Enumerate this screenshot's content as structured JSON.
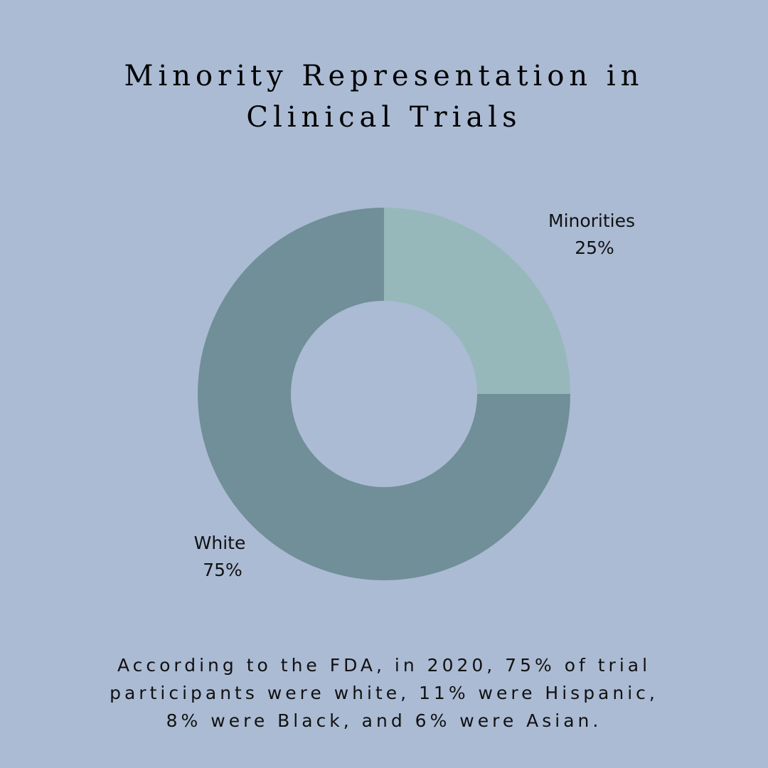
{
  "page": {
    "background": "#abbbd4",
    "title_lines": [
      "Minority Representation in",
      "Clinical Trials"
    ],
    "footnote_lines": [
      "According to the FDA, in 2020, 75% of trial",
      "participants were white, 11% were Hispanic,",
      "8% were Black, and 6% were Asian."
    ]
  },
  "chart_data": {
    "type": "pie",
    "style": "donut",
    "title": "Minority Representation in Clinical Trials",
    "legend": "none",
    "slices": [
      {
        "label": "Minorities",
        "value": 25,
        "value_label": "25%",
        "color": "#96b8ba"
      },
      {
        "label": "White",
        "value": 75,
        "value_label": "75%",
        "color": "#708f98"
      }
    ]
  }
}
